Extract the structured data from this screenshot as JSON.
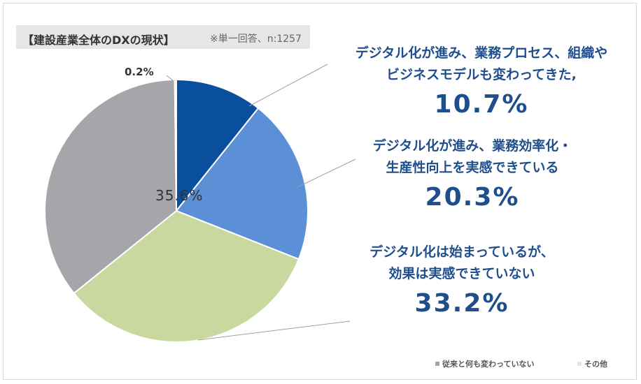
{
  "header": {
    "title": "【建設産業全体のDXの現状】",
    "note": "※単一回答、n:1257"
  },
  "chart_data": {
    "type": "pie",
    "title": "【建設産業全体のDXの現状】",
    "note": "※単一回答、n:1257",
    "slices": [
      {
        "label": "デジタル化が進み、業務プロセス、組織やビジネスモデルも変わってきた",
        "value": 10.7,
        "value_label": "10.7%",
        "color": "#0a4f9e"
      },
      {
        "label": "デジタル化が進み、業務効率化・生産性向上を実感できている",
        "value": 20.3,
        "value_label": "20.3%",
        "color": "#5b8fd6"
      },
      {
        "label": "デジタル化は始まっているが、効果は実感できていない",
        "value": 33.2,
        "value_label": "33.2%",
        "color": "#c9d89f"
      },
      {
        "label": "従来と何も変わっていない",
        "value": 35.6,
        "value_label": "35.6%",
        "color": "#a6a5a9"
      },
      {
        "label": "その他",
        "value": 0.2,
        "value_label": "0.2%",
        "color": "#e5e5e5"
      }
    ]
  },
  "annotations": {
    "a1": {
      "line1": "デジタル化が進み、業務プロセス、組織や",
      "line2": "ビジネスモデルも変わってきた,",
      "pct": "10.7%"
    },
    "a2": {
      "line1": "デジタル化が進み、業務効率化・",
      "line2": "生産性向上を実感できている",
      "pct": "20.3%"
    },
    "a3": {
      "line1": "デジタル化は始まっているが、",
      "line2": "効果は実感できていない",
      "pct": "33.2%"
    },
    "inside": "35.6%",
    "small": "0.2%"
  },
  "legend": [
    {
      "label": "従来と何も変わっていない",
      "color": "#a6a5a9"
    },
    {
      "label": "その他",
      "color": "#e5e5e5"
    }
  ]
}
